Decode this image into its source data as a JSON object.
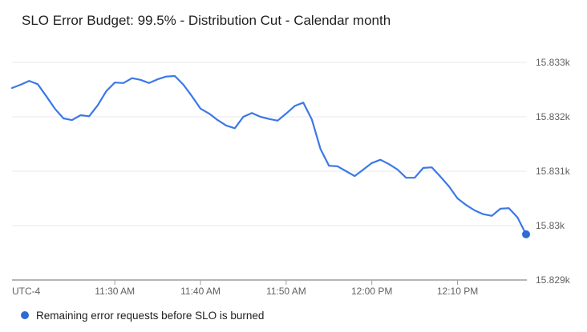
{
  "title": "SLO Error Budget: 99.5% - Distribution Cut - Calendar month",
  "legend": {
    "label": "Remaining error requests before SLO is burned"
  },
  "colors": {
    "line": "#3b78e7",
    "marker": "#2e6bd3",
    "grid": "#e9eaed",
    "axis_line": "#8b8b8b",
    "tick": "#9aa0a6",
    "axis_text": "#616161",
    "title_text": "#1f1f1f",
    "legend_text": "#202124",
    "background": "#ffffff"
  },
  "chart_data": {
    "type": "line",
    "title": "SLO Error Budget: 99.5% - Distribution Cut - Calendar month",
    "xlabel": "",
    "ylabel": "",
    "x_axis_note": "UTC-4",
    "grid": true,
    "legend_position": "bottom-left",
    "ylim": [
      15829,
      15833
    ],
    "y_ticks": [
      {
        "label": "15.833k",
        "value": 15833
      },
      {
        "label": "15.832k",
        "value": 15832
      },
      {
        "label": "15.831k",
        "value": 15831
      },
      {
        "label": "15.83k",
        "value": 15830
      },
      {
        "label": "15.829k",
        "value": 15829
      }
    ],
    "x_ticks": [
      {
        "label": "11:30 AM",
        "minute": 12
      },
      {
        "label": "11:40 AM",
        "minute": 22
      },
      {
        "label": "11:50 AM",
        "minute": 32
      },
      {
        "label": "12:00 PM",
        "minute": 42
      },
      {
        "label": "12:10 PM",
        "minute": 52
      }
    ],
    "series": [
      {
        "name": "Remaining error requests before SLO is burned",
        "times": [
          "11:18 AM",
          "11:19 AM",
          "11:20 AM",
          "11:21 AM",
          "11:22 AM",
          "11:23 AM",
          "11:24 AM",
          "11:25 AM",
          "11:26 AM",
          "11:27 AM",
          "11:28 AM",
          "11:29 AM",
          "11:30 AM",
          "11:31 AM",
          "11:32 AM",
          "11:33 AM",
          "11:34 AM",
          "11:35 AM",
          "11:36 AM",
          "11:37 AM",
          "11:38 AM",
          "11:39 AM",
          "11:40 AM",
          "11:41 AM",
          "11:42 AM",
          "11:43 AM",
          "11:44 AM",
          "11:45 AM",
          "11:46 AM",
          "11:47 AM",
          "11:48 AM",
          "11:49 AM",
          "11:50 AM",
          "11:51 AM",
          "11:52 AM",
          "11:53 AM",
          "11:54 AM",
          "11:55 AM",
          "11:56 AM",
          "11:57 AM",
          "11:58 AM",
          "11:59 AM",
          "12:00 PM",
          "12:01 PM",
          "12:02 PM",
          "12:03 PM",
          "12:04 PM",
          "12:05 PM",
          "12:06 PM",
          "12:07 PM",
          "12:08 PM",
          "12:09 PM",
          "12:10 PM",
          "12:11 PM",
          "12:12 PM",
          "12:13 PM",
          "12:14 PM",
          "12:15 PM",
          "12:16 PM",
          "12:17 PM",
          "12:18 PM"
        ],
        "values": [
          15832.53,
          15832.59,
          15832.66,
          15832.6,
          15832.38,
          15832.15,
          15831.97,
          15831.94,
          15832.03,
          15832.01,
          15832.21,
          15832.47,
          15832.63,
          15832.62,
          15832.71,
          15832.68,
          15832.62,
          15832.69,
          15832.74,
          15832.75,
          15832.59,
          15832.38,
          15832.15,
          15832.06,
          15831.94,
          15831.84,
          15831.79,
          15832.0,
          15832.07,
          15832.0,
          15831.96,
          15831.93,
          15832.06,
          15832.2,
          15832.26,
          15831.95,
          15831.41,
          15831.1,
          15831.09,
          15831.0,
          15830.91,
          15831.03,
          15831.15,
          15831.21,
          15831.13,
          15831.03,
          15830.88,
          15830.88,
          15831.06,
          15831.07,
          15830.9,
          15830.72,
          15830.5,
          15830.38,
          15830.28,
          15830.21,
          15830.18,
          15830.31,
          15830.32,
          15830.15,
          15829.84
        ]
      }
    ]
  }
}
